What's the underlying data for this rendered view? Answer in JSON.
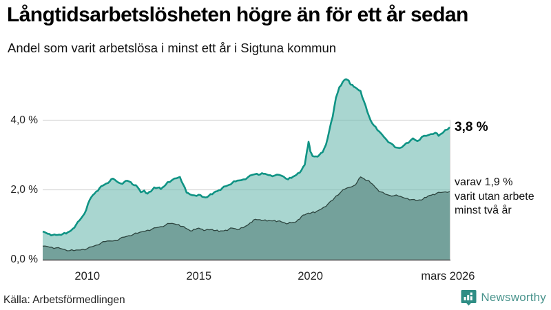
{
  "header": {
    "title": "Långtidsarbetslösheten högre än för ett år sedan",
    "subtitle": "Andel som varit arbetslösa i minst ett år i Sigtuna kommun"
  },
  "footer": {
    "source": "Källa: Arbetsförmedlingen",
    "brand": "Newsworthy"
  },
  "annotations": {
    "end_label_total": "3,8 %",
    "two_year_lines": [
      "varav 1,9 %",
      "varit utan arbete",
      "minst två år"
    ]
  },
  "chart_data": {
    "type": "area",
    "title": "Långtidsarbetslösheten högre än för ett år sedan",
    "subtitle": "Andel som varit arbetslösa i minst ett år i Sigtuna kommun",
    "unit": "%",
    "grid": "horizontal",
    "x_domain": [
      2008.0,
      2026.25
    ],
    "y_domain": [
      0,
      5.45
    ],
    "y_ticks": [
      {
        "label": "4,0 %",
        "value": 4.0
      },
      {
        "label": "2,0 %",
        "value": 2.0
      },
      {
        "label": "0,0 %",
        "value": 0.0
      }
    ],
    "x_ticks": [
      {
        "label": "2010",
        "year": 2010
      },
      {
        "label": "2015",
        "year": 2015
      },
      {
        "label": "2020",
        "year": 2020
      },
      {
        "label": "mars 2026",
        "year": 2026.17
      }
    ],
    "gridline_values": [
      2.0,
      4.0
    ],
    "colors": {
      "total_line": "#0f9384",
      "total_fill": "#70bbb1",
      "two_year_line": "#2d453f",
      "two_year_fill": "#74a19b",
      "gridline": "#d8d8d8",
      "axis_line": "#4a4a4a"
    },
    "series": [
      {
        "name": "Arbetslösa minst ett år",
        "end_value_label": "3,8 %",
        "points": [
          [
            2008.0,
            0.8
          ],
          [
            2008.15,
            0.76
          ],
          [
            2008.3,
            0.73
          ],
          [
            2008.45,
            0.7
          ],
          [
            2008.6,
            0.7
          ],
          [
            2008.75,
            0.71
          ],
          [
            2008.9,
            0.73
          ],
          [
            2009.05,
            0.74
          ],
          [
            2009.2,
            0.8
          ],
          [
            2009.35,
            0.88
          ],
          [
            2009.5,
            1.0
          ],
          [
            2009.65,
            1.12
          ],
          [
            2009.8,
            1.25
          ],
          [
            2009.95,
            1.42
          ],
          [
            2010.1,
            1.7
          ],
          [
            2010.25,
            1.85
          ],
          [
            2010.4,
            1.95
          ],
          [
            2010.55,
            2.05
          ],
          [
            2010.7,
            2.12
          ],
          [
            2010.85,
            2.18
          ],
          [
            2011.0,
            2.24
          ],
          [
            2011.15,
            2.32
          ],
          [
            2011.3,
            2.25
          ],
          [
            2011.5,
            2.18
          ],
          [
            2011.65,
            2.22
          ],
          [
            2011.8,
            2.26
          ],
          [
            2011.95,
            2.22
          ],
          [
            2012.1,
            2.13
          ],
          [
            2012.25,
            2.08
          ],
          [
            2012.4,
            1.93
          ],
          [
            2012.55,
            1.98
          ],
          [
            2012.7,
            1.89
          ],
          [
            2012.85,
            1.95
          ],
          [
            2013.0,
            2.07
          ],
          [
            2013.15,
            2.06
          ],
          [
            2013.3,
            2.02
          ],
          [
            2013.45,
            2.1
          ],
          [
            2013.6,
            2.22
          ],
          [
            2013.8,
            2.28
          ],
          [
            2014.0,
            2.33
          ],
          [
            2014.15,
            2.37
          ],
          [
            2014.3,
            2.15
          ],
          [
            2014.45,
            1.92
          ],
          [
            2014.6,
            1.87
          ],
          [
            2014.8,
            1.84
          ],
          [
            2015.0,
            1.86
          ],
          [
            2015.15,
            1.8
          ],
          [
            2015.3,
            1.78
          ],
          [
            2015.45,
            1.83
          ],
          [
            2015.6,
            1.87
          ],
          [
            2015.75,
            1.95
          ],
          [
            2015.9,
            1.99
          ],
          [
            2016.05,
            2.05
          ],
          [
            2016.2,
            2.1
          ],
          [
            2016.35,
            2.14
          ],
          [
            2016.5,
            2.2
          ],
          [
            2016.65,
            2.24
          ],
          [
            2016.8,
            2.27
          ],
          [
            2017.0,
            2.3
          ],
          [
            2017.2,
            2.36
          ],
          [
            2017.4,
            2.43
          ],
          [
            2017.6,
            2.46
          ],
          [
            2017.75,
            2.44
          ],
          [
            2017.9,
            2.46
          ],
          [
            2018.05,
            2.44
          ],
          [
            2018.2,
            2.42
          ],
          [
            2018.4,
            2.41
          ],
          [
            2018.6,
            2.43
          ],
          [
            2018.8,
            2.38
          ],
          [
            2019.0,
            2.3
          ],
          [
            2019.15,
            2.34
          ],
          [
            2019.3,
            2.4
          ],
          [
            2019.45,
            2.48
          ],
          [
            2019.6,
            2.56
          ],
          [
            2019.75,
            2.72
          ],
          [
            2019.85,
            3.12
          ],
          [
            2019.92,
            3.38
          ],
          [
            2020.0,
            3.1
          ],
          [
            2020.1,
            2.97
          ],
          [
            2020.25,
            2.96
          ],
          [
            2020.4,
            3.0
          ],
          [
            2020.55,
            3.08
          ],
          [
            2020.7,
            3.3
          ],
          [
            2020.85,
            3.7
          ],
          [
            2021.0,
            4.1
          ],
          [
            2021.15,
            4.65
          ],
          [
            2021.3,
            4.95
          ],
          [
            2021.45,
            5.1
          ],
          [
            2021.6,
            5.18
          ],
          [
            2021.72,
            5.14
          ],
          [
            2021.82,
            5.02
          ],
          [
            2021.95,
            4.96
          ],
          [
            2022.1,
            4.9
          ],
          [
            2022.25,
            4.84
          ],
          [
            2022.4,
            4.55
          ],
          [
            2022.55,
            4.25
          ],
          [
            2022.7,
            4.0
          ],
          [
            2022.85,
            3.85
          ],
          [
            2023.0,
            3.72
          ],
          [
            2023.2,
            3.6
          ],
          [
            2023.4,
            3.45
          ],
          [
            2023.6,
            3.34
          ],
          [
            2023.8,
            3.22
          ],
          [
            2024.0,
            3.2
          ],
          [
            2024.2,
            3.28
          ],
          [
            2024.4,
            3.35
          ],
          [
            2024.6,
            3.48
          ],
          [
            2024.8,
            3.4
          ],
          [
            2025.0,
            3.52
          ],
          [
            2025.2,
            3.55
          ],
          [
            2025.4,
            3.6
          ],
          [
            2025.6,
            3.64
          ],
          [
            2025.75,
            3.55
          ],
          [
            2025.9,
            3.62
          ],
          [
            2026.05,
            3.72
          ],
          [
            2026.25,
            3.8
          ]
        ]
      },
      {
        "name": "varav arbetslösa minst två år",
        "end_value_label": "1,9 %",
        "points": [
          [
            2008.0,
            0.38
          ],
          [
            2008.2,
            0.37
          ],
          [
            2008.4,
            0.35
          ],
          [
            2008.6,
            0.33
          ],
          [
            2008.8,
            0.31
          ],
          [
            2009.0,
            0.28
          ],
          [
            2009.2,
            0.25
          ],
          [
            2009.4,
            0.25
          ],
          [
            2009.6,
            0.27
          ],
          [
            2009.8,
            0.29
          ],
          [
            2010.0,
            0.31
          ],
          [
            2010.2,
            0.36
          ],
          [
            2010.4,
            0.41
          ],
          [
            2010.6,
            0.46
          ],
          [
            2010.8,
            0.51
          ],
          [
            2011.0,
            0.53
          ],
          [
            2011.25,
            0.54
          ],
          [
            2011.45,
            0.59
          ],
          [
            2011.65,
            0.64
          ],
          [
            2011.85,
            0.68
          ],
          [
            2012.05,
            0.71
          ],
          [
            2012.25,
            0.75
          ],
          [
            2012.5,
            0.8
          ],
          [
            2012.7,
            0.84
          ],
          [
            2012.9,
            0.87
          ],
          [
            2013.1,
            0.91
          ],
          [
            2013.3,
            0.94
          ],
          [
            2013.5,
            0.98
          ],
          [
            2013.7,
            1.03
          ],
          [
            2013.9,
            1.02
          ],
          [
            2014.1,
            1.0
          ],
          [
            2014.25,
            0.95
          ],
          [
            2014.4,
            0.9
          ],
          [
            2014.55,
            0.85
          ],
          [
            2014.7,
            0.82
          ],
          [
            2014.85,
            0.86
          ],
          [
            2015.0,
            0.9
          ],
          [
            2015.15,
            0.87
          ],
          [
            2015.3,
            0.84
          ],
          [
            2015.45,
            0.85
          ],
          [
            2015.6,
            0.86
          ],
          [
            2015.75,
            0.83
          ],
          [
            2015.9,
            0.8
          ],
          [
            2016.05,
            0.82
          ],
          [
            2016.2,
            0.84
          ],
          [
            2016.35,
            0.87
          ],
          [
            2016.5,
            0.9
          ],
          [
            2016.65,
            0.88
          ],
          [
            2016.8,
            0.86
          ],
          [
            2017.0,
            0.91
          ],
          [
            2017.15,
            0.97
          ],
          [
            2017.3,
            1.05
          ],
          [
            2017.45,
            1.13
          ],
          [
            2017.6,
            1.14
          ],
          [
            2017.75,
            1.14
          ],
          [
            2017.9,
            1.12
          ],
          [
            2018.05,
            1.1
          ],
          [
            2018.2,
            1.11
          ],
          [
            2018.4,
            1.12
          ],
          [
            2018.55,
            1.1
          ],
          [
            2018.7,
            1.08
          ],
          [
            2018.85,
            1.05
          ],
          [
            2019.0,
            1.03
          ],
          [
            2019.15,
            1.05
          ],
          [
            2019.3,
            1.06
          ],
          [
            2019.45,
            1.14
          ],
          [
            2019.6,
            1.23
          ],
          [
            2019.75,
            1.28
          ],
          [
            2019.9,
            1.33
          ],
          [
            2020.05,
            1.34
          ],
          [
            2020.2,
            1.34
          ],
          [
            2020.4,
            1.42
          ],
          [
            2020.6,
            1.5
          ],
          [
            2020.8,
            1.6
          ],
          [
            2021.0,
            1.7
          ],
          [
            2021.15,
            1.82
          ],
          [
            2021.35,
            1.92
          ],
          [
            2021.55,
            2.02
          ],
          [
            2021.75,
            2.07
          ],
          [
            2021.95,
            2.12
          ],
          [
            2022.1,
            2.22
          ],
          [
            2022.25,
            2.37
          ],
          [
            2022.4,
            2.32
          ],
          [
            2022.55,
            2.27
          ],
          [
            2022.7,
            2.2
          ],
          [
            2022.85,
            2.12
          ],
          [
            2023.0,
            2.02
          ],
          [
            2023.15,
            1.94
          ],
          [
            2023.35,
            1.88
          ],
          [
            2023.55,
            1.84
          ],
          [
            2023.75,
            1.83
          ],
          [
            2023.95,
            1.82
          ],
          [
            2024.15,
            1.78
          ],
          [
            2024.35,
            1.75
          ],
          [
            2024.55,
            1.72
          ],
          [
            2024.75,
            1.69
          ],
          [
            2024.9,
            1.71
          ],
          [
            2025.05,
            1.73
          ],
          [
            2025.2,
            1.78
          ],
          [
            2025.35,
            1.84
          ],
          [
            2025.5,
            1.87
          ],
          [
            2025.65,
            1.9
          ],
          [
            2025.85,
            1.92
          ],
          [
            2026.05,
            1.94
          ],
          [
            2026.25,
            1.95
          ]
        ]
      }
    ]
  }
}
